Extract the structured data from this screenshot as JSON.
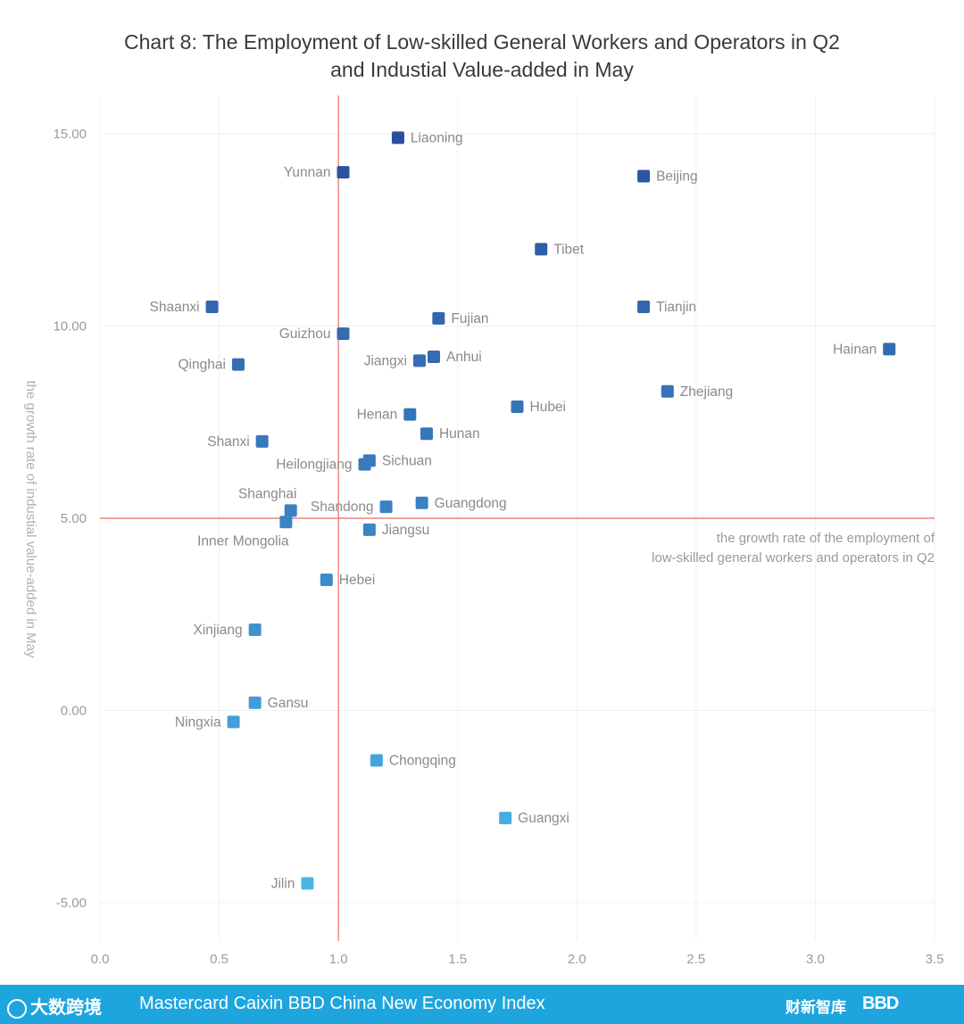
{
  "chart_data": {
    "type": "scatter",
    "title_lines": [
      "Chart 8: The Employment of Low-skilled General Workers and Operators in Q2",
      "and Industial Value-added in May"
    ],
    "xlabel_lines": [
      "the growth rate of the employment of",
      "low-skilled general workers and operators in Q2"
    ],
    "ylabel": "the growth rate of industial value-added in May",
    "xlim": [
      0,
      3.5
    ],
    "ylim": [
      -6,
      16
    ],
    "x_ticks": [
      0,
      0.5,
      1,
      1.5,
      2,
      2.5,
      3,
      3.5
    ],
    "x_tick_labels": [
      "0.0",
      "0.5",
      "1.0",
      "1.5",
      "2.0",
      "2.5",
      "3.0",
      "3.5"
    ],
    "y_ticks": [
      -5,
      0,
      5,
      10,
      15
    ],
    "y_tick_labels": [
      "-5.00",
      "0.00",
      "5.00",
      "10.00",
      "15.00"
    ],
    "reference_lines": {
      "x": 1.0,
      "y": 5.0,
      "color": "#f08080"
    },
    "grid": true,
    "color_scale": {
      "low": "#4cb8e8",
      "high": "#2a4e9e"
    },
    "points": [
      {
        "name": "Liaoning",
        "x": 1.25,
        "y": 14.9,
        "label_side": "right"
      },
      {
        "name": "Yunnan",
        "x": 1.02,
        "y": 14.0,
        "label_side": "left"
      },
      {
        "name": "Beijing",
        "x": 2.28,
        "y": 13.9,
        "label_side": "right"
      },
      {
        "name": "Tibet",
        "x": 1.85,
        "y": 12.0,
        "label_side": "right"
      },
      {
        "name": "Shaanxi",
        "x": 0.47,
        "y": 10.5,
        "label_side": "left"
      },
      {
        "name": "Tianjin",
        "x": 2.28,
        "y": 10.5,
        "label_side": "right"
      },
      {
        "name": "Fujian",
        "x": 1.42,
        "y": 10.2,
        "label_side": "right"
      },
      {
        "name": "Guizhou",
        "x": 1.02,
        "y": 9.8,
        "label_side": "left"
      },
      {
        "name": "Hainan",
        "x": 3.31,
        "y": 9.4,
        "label_side": "left"
      },
      {
        "name": "Anhui",
        "x": 1.4,
        "y": 9.2,
        "label_side": "right"
      },
      {
        "name": "Jiangxi",
        "x": 1.34,
        "y": 9.1,
        "label_side": "left"
      },
      {
        "name": "Qinghai",
        "x": 0.58,
        "y": 9.0,
        "label_side": "left"
      },
      {
        "name": "Zhejiang",
        "x": 2.38,
        "y": 8.3,
        "label_side": "right"
      },
      {
        "name": "Hubei",
        "x": 1.75,
        "y": 7.9,
        "label_side": "right"
      },
      {
        "name": "Henan",
        "x": 1.3,
        "y": 7.7,
        "label_side": "left"
      },
      {
        "name": "Hunan",
        "x": 1.37,
        "y": 7.2,
        "label_side": "right"
      },
      {
        "name": "Shanxi",
        "x": 0.68,
        "y": 7.0,
        "label_side": "left"
      },
      {
        "name": "Sichuan",
        "x": 1.13,
        "y": 6.5,
        "label_side": "right"
      },
      {
        "name": "Heilongjiang",
        "x": 1.11,
        "y": 6.4,
        "label_side": "left"
      },
      {
        "name": "Guangdong",
        "x": 1.35,
        "y": 5.4,
        "label_side": "right"
      },
      {
        "name": "Shandong",
        "x": 1.2,
        "y": 5.3,
        "label_side": "left"
      },
      {
        "name": "Shanghai",
        "x": 0.8,
        "y": 5.2,
        "label_side": "above"
      },
      {
        "name": "Inner Mongolia",
        "x": 0.78,
        "y": 4.9,
        "label_side": "below"
      },
      {
        "name": "Jiangsu",
        "x": 1.13,
        "y": 4.7,
        "label_side": "right"
      },
      {
        "name": "Hebei",
        "x": 0.95,
        "y": 3.4,
        "label_side": "right"
      },
      {
        "name": "Xinjiang",
        "x": 0.65,
        "y": 2.1,
        "label_side": "left"
      },
      {
        "name": "Gansu",
        "x": 0.65,
        "y": 0.2,
        "label_side": "right"
      },
      {
        "name": "Ningxia",
        "x": 0.56,
        "y": -0.3,
        "label_side": "left"
      },
      {
        "name": "Chongqing",
        "x": 1.16,
        "y": -1.3,
        "label_side": "right"
      },
      {
        "name": "Guangxi",
        "x": 1.7,
        "y": -2.8,
        "label_side": "right"
      },
      {
        "name": "Jilin",
        "x": 0.87,
        "y": -4.5,
        "label_side": "left"
      }
    ]
  },
  "footer": {
    "text": "Mastercard Caixin BBD China New Economy Index",
    "logo_left_text": "大数跨境",
    "logo_caixin_text": "财新智库",
    "logo_bbd_text": "BBD"
  }
}
